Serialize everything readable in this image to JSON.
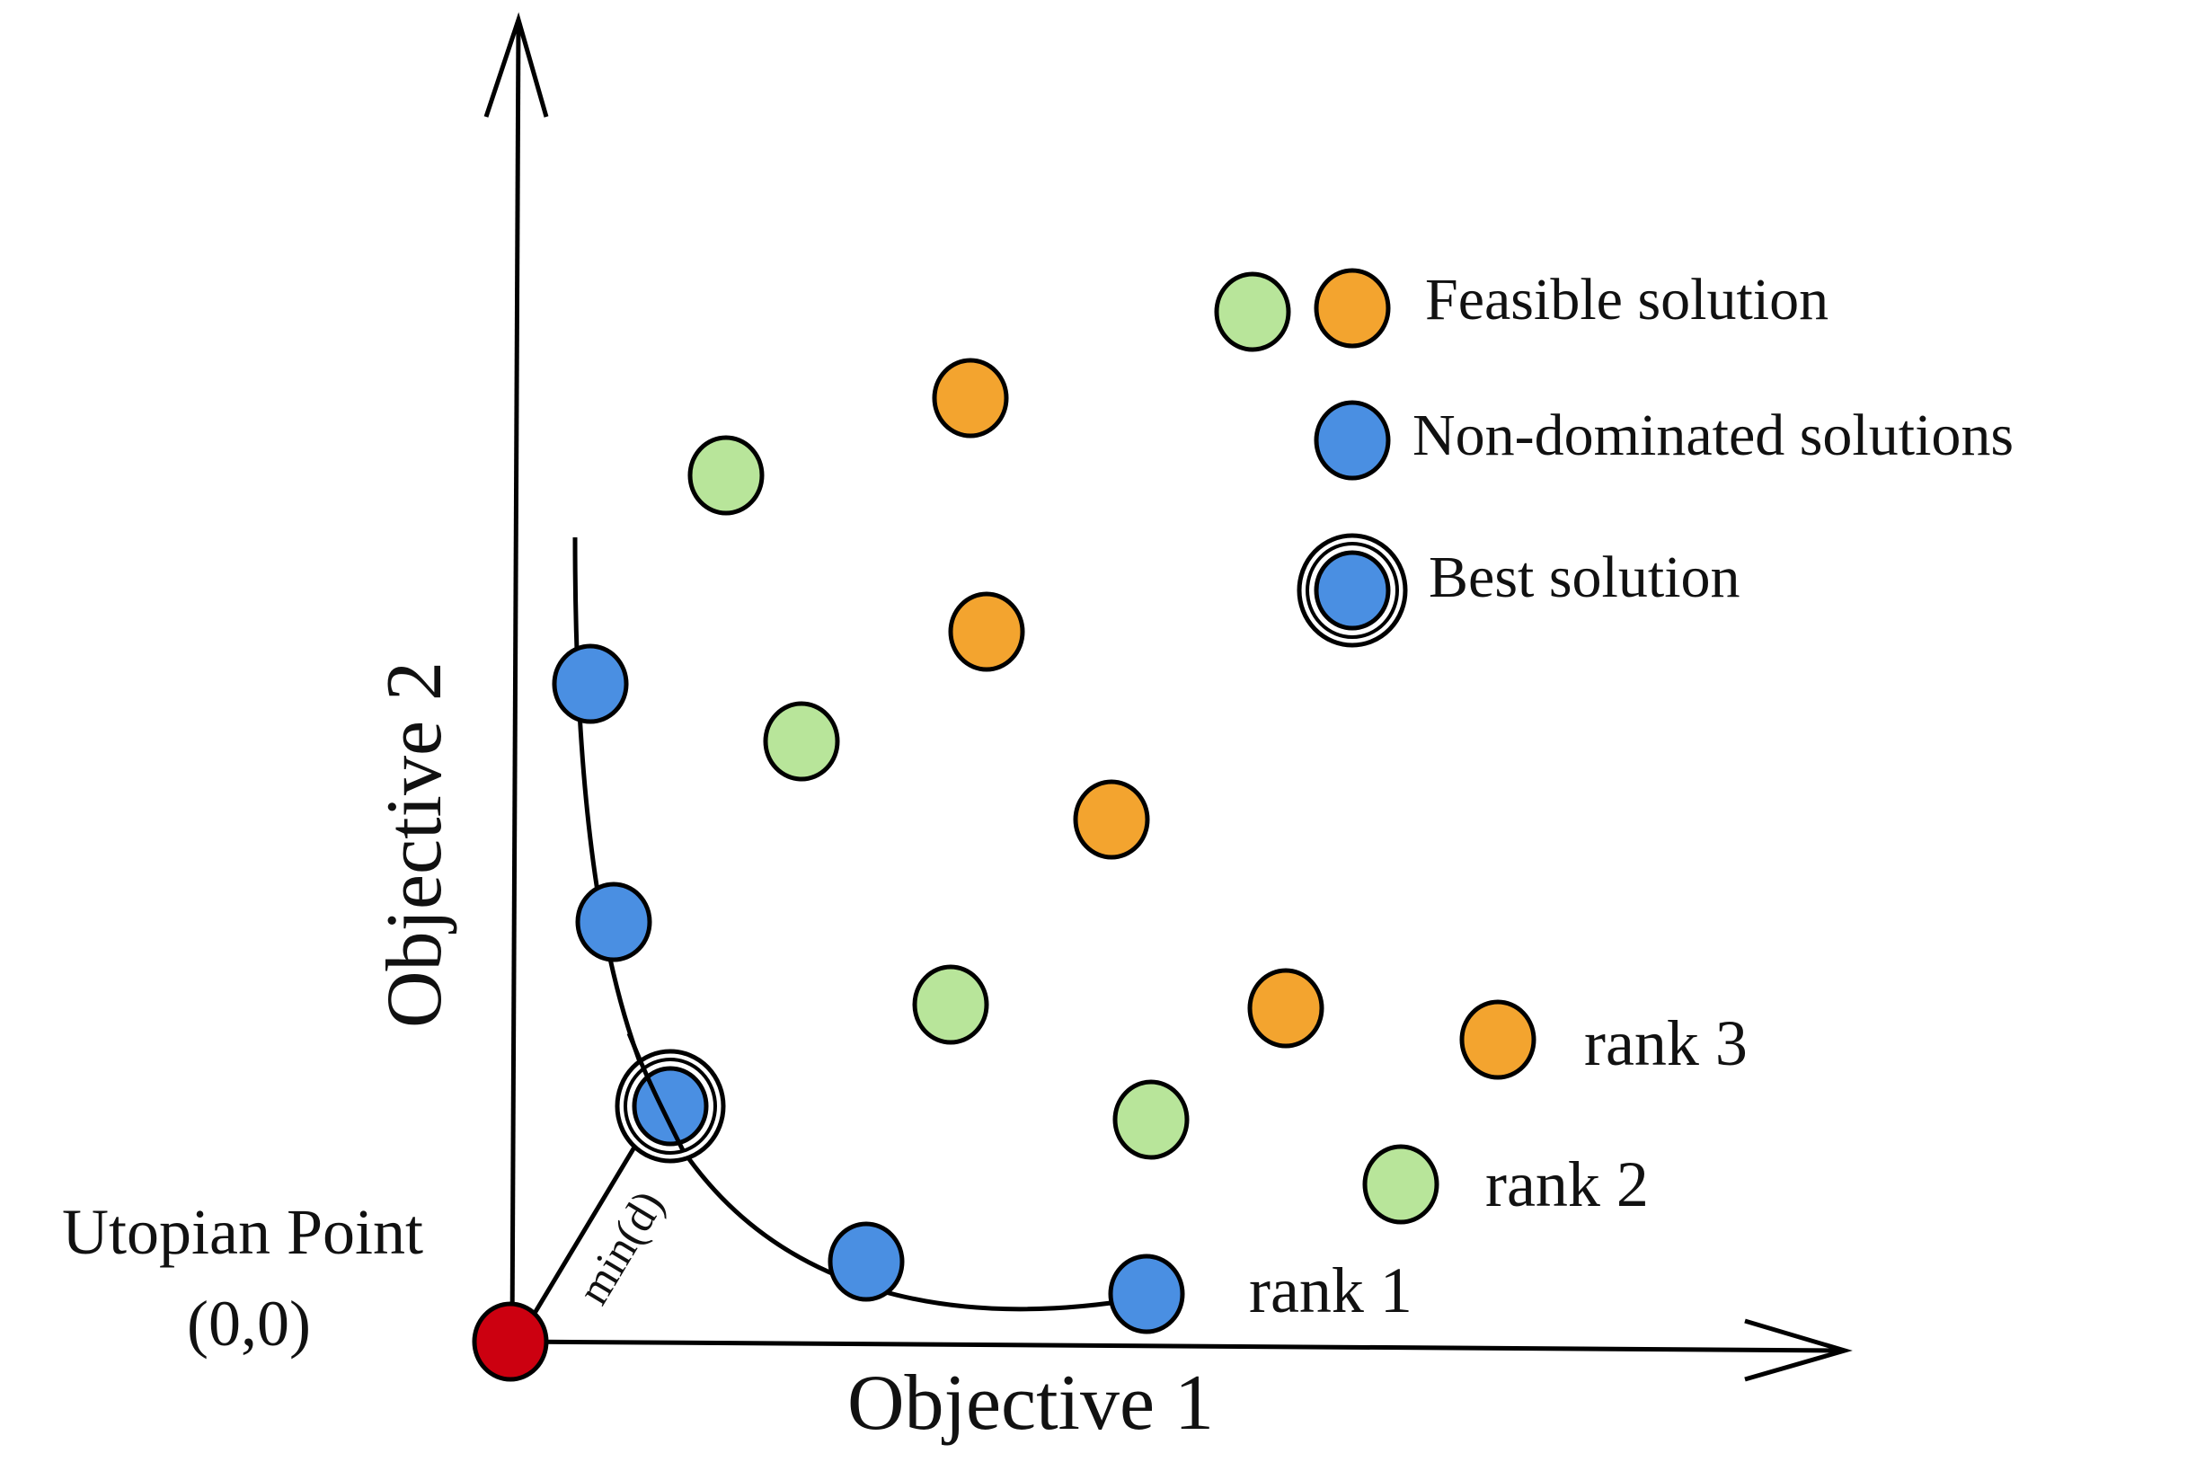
{
  "colors": {
    "rank1": "#4a8fe2",
    "rank2": "#b8e59a",
    "rank3": "#f3a42f",
    "utopian": "#cc0010",
    "line": "#000000"
  },
  "axes": {
    "x_label": "Objective 1",
    "y_label": "Objective 2"
  },
  "origin": {
    "label_line1": "Utopian Point",
    "label_line2": "(0,0)"
  },
  "distance_label": "min(d)",
  "legend": {
    "feasible": "Feasible solution",
    "non_dominated": "Non-dominated solutions",
    "best": "Best solution"
  },
  "ranks": {
    "rank1": "rank 1",
    "rank2": "rank 2",
    "rank3": "rank 3"
  },
  "points": {
    "rank1_count": 5,
    "rank2_count": 6,
    "rank3_count": 6,
    "best_index": 2
  }
}
